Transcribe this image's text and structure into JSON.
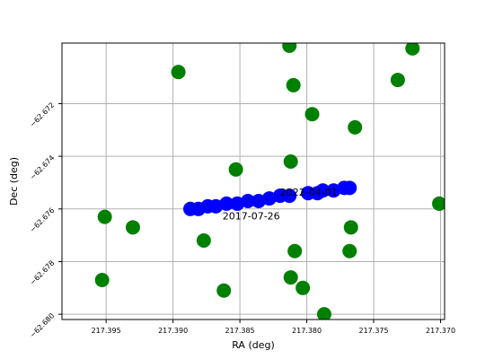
{
  "chart_data": {
    "type": "scatter",
    "title": "",
    "xlabel": "RA (deg)",
    "ylabel": "Dec (deg)",
    "xlim": [
      217.3983,
      217.3697
    ],
    "ylim": [
      -62.6802,
      -62.6697
    ],
    "x_ticks": [
      217.395,
      217.39,
      217.385,
      217.38,
      217.375,
      217.37
    ],
    "x_tick_labels": [
      "217.395",
      "217.390",
      "217.385",
      "217.380",
      "217.375",
      "217.370"
    ],
    "y_ticks": [
      -62.672,
      -62.674,
      -62.676,
      -62.678,
      -62.68
    ],
    "y_tick_labels": [
      "−62.672",
      "−62.674",
      "−62.676",
      "−62.678",
      "−62.680"
    ],
    "grid": true,
    "colors": {
      "field": "#008000",
      "track": "#0000ff",
      "grid": "#b0b0b0"
    },
    "series": [
      {
        "values": [
          [
            217.3813,
            -62.6698
          ],
          [
            217.3721,
            -62.6699
          ],
          [
            217.3896,
            -62.6708
          ],
          [
            217.381,
            -62.6713
          ],
          [
            217.3732,
            -62.6711
          ],
          [
            217.3796,
            -62.6724
          ],
          [
            217.3764,
            -62.6729
          ],
          [
            217.3812,
            -62.6742
          ],
          [
            217.3853,
            -62.6745
          ],
          [
            217.3701,
            -62.6758
          ],
          [
            217.3951,
            -62.6763
          ],
          [
            217.393,
            -62.6767
          ],
          [
            217.3767,
            -62.6767
          ],
          [
            217.3768,
            -62.6776
          ],
          [
            217.3877,
            -62.6772
          ],
          [
            217.3809,
            -62.6776
          ],
          [
            217.3812,
            -62.6786
          ],
          [
            217.3862,
            -62.6791
          ],
          [
            217.3953,
            -62.6787
          ],
          [
            217.3803,
            -62.679
          ],
          [
            217.3787,
            -62.68
          ]
        ]
      },
      {
        "values": [
          [
            217.3887,
            -62.676
          ],
          [
            217.3881,
            -62.676
          ],
          [
            217.3874,
            -62.6759
          ],
          [
            217.3868,
            -62.6759
          ],
          [
            217.386,
            -62.6758
          ],
          [
            217.3852,
            -62.6758
          ],
          [
            217.3844,
            -62.6757
          ],
          [
            217.3836,
            -62.6757
          ],
          [
            217.3828,
            -62.6756
          ],
          [
            217.382,
            -62.6755
          ],
          [
            217.3813,
            -62.6755
          ],
          [
            217.3799,
            -62.6754
          ],
          [
            217.3792,
            -62.6754
          ],
          [
            217.3788,
            -62.6753
          ],
          [
            217.378,
            -62.6753
          ],
          [
            217.3772,
            -62.6752
          ],
          [
            217.3768,
            -62.6752
          ]
        ]
      }
    ],
    "annotations": [
      {
        "text": "2017-07-26",
        "x": 217.3863,
        "y": -62.6764
      },
      {
        "text": "2022-04-01",
        "x": 217.382,
        "y": -62.6755
      }
    ]
  }
}
